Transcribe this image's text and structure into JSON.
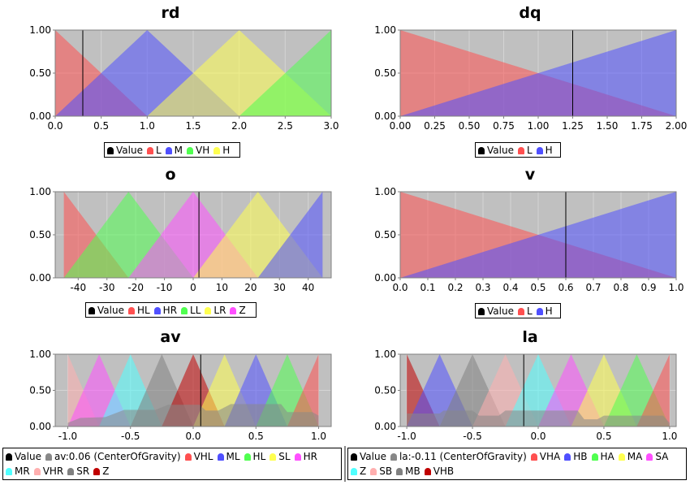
{
  "chart_data": [
    {
      "id": "rd",
      "type": "area",
      "title": "rd",
      "xlim": [
        0,
        3.0
      ],
      "ylim": [
        0,
        1
      ],
      "xticks": [
        "0.0",
        "0.5",
        "1.0",
        "1.5",
        "2.0",
        "2.5",
        "3.0"
      ],
      "xtickvals": [
        0,
        0.5,
        1,
        1.5,
        2,
        2.5,
        3
      ],
      "yticks": [
        "0.00",
        "0.50",
        "1.00"
      ],
      "value": 0.3,
      "legend": [
        {
          "name": "Value",
          "color": "#000000"
        },
        {
          "name": "L",
          "color": "#ff5050"
        },
        {
          "name": "M",
          "color": "#5050ff"
        },
        {
          "name": "VH",
          "color": "#50ff50"
        },
        {
          "name": "H",
          "color": "#ffff50"
        }
      ],
      "series": [
        {
          "name": "L",
          "color": "#ff5050",
          "points": [
            [
              0,
              1
            ],
            [
              1,
              0
            ]
          ]
        },
        {
          "name": "M",
          "color": "#5050ff",
          "points": [
            [
              0,
              0
            ],
            [
              1,
              1
            ],
            [
              2,
              0
            ]
          ]
        },
        {
          "name": "H",
          "color": "#ffff50",
          "points": [
            [
              1,
              0
            ],
            [
              2,
              1
            ],
            [
              3,
              0
            ]
          ]
        },
        {
          "name": "VH",
          "color": "#50ff50",
          "points": [
            [
              2,
              0
            ],
            [
              3,
              1
            ],
            [
              3,
              0
            ]
          ]
        }
      ]
    },
    {
      "id": "dq",
      "type": "area",
      "title": "dq",
      "xlim": [
        0,
        2.0
      ],
      "ylim": [
        0,
        1
      ],
      "xticks": [
        "0.00",
        "0.25",
        "0.50",
        "0.75",
        "1.00",
        "1.25",
        "1.50",
        "1.75",
        "2.00"
      ],
      "xtickvals": [
        0,
        0.25,
        0.5,
        0.75,
        1,
        1.25,
        1.5,
        1.75,
        2
      ],
      "yticks": [
        "0.00",
        "0.50",
        "1.00"
      ],
      "value": 1.25,
      "legend": [
        {
          "name": "Value",
          "color": "#000000"
        },
        {
          "name": "L",
          "color": "#ff5050"
        },
        {
          "name": "H",
          "color": "#5050ff"
        }
      ],
      "series": [
        {
          "name": "L",
          "color": "#ff5050",
          "points": [
            [
              0,
              1
            ],
            [
              2,
              0
            ]
          ]
        },
        {
          "name": "H",
          "color": "#5050ff",
          "points": [
            [
              0,
              0
            ],
            [
              2,
              1
            ],
            [
              2,
              0
            ]
          ]
        }
      ]
    },
    {
      "id": "o",
      "type": "area",
      "title": "o",
      "xlim": [
        -48,
        48
      ],
      "ylim": [
        0,
        1
      ],
      "xticks": [
        "-40",
        "-30",
        "-20",
        "-10",
        "0",
        "10",
        "20",
        "30",
        "40"
      ],
      "xtickvals": [
        -40,
        -30,
        -20,
        -10,
        0,
        10,
        20,
        30,
        40
      ],
      "yticks": [
        "0.00",
        "0.50",
        "1.00"
      ],
      "value": 2,
      "legend": [
        {
          "name": "Value",
          "color": "#000000"
        },
        {
          "name": "HL",
          "color": "#ff5050"
        },
        {
          "name": "HR",
          "color": "#5050ff"
        },
        {
          "name": "LL",
          "color": "#50ff50"
        },
        {
          "name": "LR",
          "color": "#ffff50"
        },
        {
          "name": "Z",
          "color": "#ff50ff"
        }
      ],
      "series": [
        {
          "name": "HL",
          "color": "#ff5050",
          "points": [
            [
              -45,
              0
            ],
            [
              -45,
              1
            ],
            [
              -22.5,
              0
            ]
          ]
        },
        {
          "name": "LL",
          "color": "#50ff50",
          "points": [
            [
              -45,
              0
            ],
            [
              -22.5,
              1
            ],
            [
              0,
              0
            ]
          ]
        },
        {
          "name": "Z",
          "color": "#ff50ff",
          "points": [
            [
              -22.5,
              0
            ],
            [
              0,
              1
            ],
            [
              22.5,
              0
            ]
          ]
        },
        {
          "name": "LR",
          "color": "#ffff50",
          "points": [
            [
              0,
              0
            ],
            [
              22.5,
              1
            ],
            [
              45,
              0
            ]
          ]
        },
        {
          "name": "HR",
          "color": "#5050ff",
          "points": [
            [
              22.5,
              0
            ],
            [
              45,
              1
            ],
            [
              45,
              0
            ]
          ]
        }
      ]
    },
    {
      "id": "v",
      "type": "area",
      "title": "v",
      "xlim": [
        0,
        1.0
      ],
      "ylim": [
        0,
        1
      ],
      "xticks": [
        "0.0",
        "0.1",
        "0.2",
        "0.3",
        "0.4",
        "0.5",
        "0.6",
        "0.7",
        "0.8",
        "0.9",
        "1.0"
      ],
      "xtickvals": [
        0,
        0.1,
        0.2,
        0.3,
        0.4,
        0.5,
        0.6,
        0.7,
        0.8,
        0.9,
        1
      ],
      "yticks": [
        "0.00",
        "0.50",
        "1.00"
      ],
      "value": 0.6,
      "legend": [
        {
          "name": "Value",
          "color": "#000000"
        },
        {
          "name": "L",
          "color": "#ff5050"
        },
        {
          "name": "H",
          "color": "#5050ff"
        }
      ],
      "series": [
        {
          "name": "L",
          "color": "#ff5050",
          "points": [
            [
              0,
              1
            ],
            [
              1,
              0
            ]
          ]
        },
        {
          "name": "H",
          "color": "#5050ff",
          "points": [
            [
              0,
              0
            ],
            [
              1,
              1
            ],
            [
              1,
              0
            ]
          ]
        }
      ]
    },
    {
      "id": "av",
      "type": "area",
      "title": "av",
      "xlim": [
        -1.1,
        1.1
      ],
      "ylim": [
        0,
        1
      ],
      "xticks": [
        "-1.0",
        "-0.5",
        "0.0",
        "0.5",
        "1.0"
      ],
      "xtickvals": [
        -1,
        -0.5,
        0,
        0.5,
        1
      ],
      "yticks": [
        "0.00",
        "0.50",
        "1.00"
      ],
      "value": 0.06,
      "legend": [
        {
          "name": "Value",
          "color": "#000000"
        },
        {
          "name": "av:0.06 (CenterOfGravity)",
          "color": "#888888"
        },
        {
          "name": "VHL",
          "color": "#ff5050"
        },
        {
          "name": "ML",
          "color": "#5050ff"
        },
        {
          "name": "HL",
          "color": "#50ff50"
        },
        {
          "name": "SL",
          "color": "#ffff50"
        },
        {
          "name": "HR",
          "color": "#ff50ff"
        },
        {
          "name": "MR",
          "color": "#50ffff"
        },
        {
          "name": "VHR",
          "color": "#ffafaf"
        },
        {
          "name": "SR",
          "color": "#808080"
        },
        {
          "name": "Z",
          "color": "#c00000"
        }
      ],
      "series": [
        {
          "name": "VHR",
          "color": "#ffafaf",
          "points": [
            [
              -1,
              0
            ],
            [
              -1,
              1
            ],
            [
              -0.75,
              0
            ]
          ]
        },
        {
          "name": "HR",
          "color": "#ff50ff",
          "points": [
            [
              -1,
              0
            ],
            [
              -0.75,
              1
            ],
            [
              -0.5,
              0
            ]
          ]
        },
        {
          "name": "MR",
          "color": "#50ffff",
          "points": [
            [
              -0.75,
              0
            ],
            [
              -0.5,
              1
            ],
            [
              -0.25,
              0
            ]
          ]
        },
        {
          "name": "SR",
          "color": "#808080",
          "points": [
            [
              -0.5,
              0
            ],
            [
              -0.25,
              1
            ],
            [
              0,
              0
            ]
          ]
        },
        {
          "name": "Z",
          "color": "#c00000",
          "points": [
            [
              -0.25,
              0
            ],
            [
              0,
              1
            ],
            [
              0.25,
              0
            ]
          ]
        },
        {
          "name": "SL",
          "color": "#ffff50",
          "points": [
            [
              0,
              0
            ],
            [
              0.25,
              1
            ],
            [
              0.5,
              0
            ]
          ]
        },
        {
          "name": "ML",
          "color": "#5050ff",
          "points": [
            [
              0.25,
              0
            ],
            [
              0.5,
              1
            ],
            [
              0.75,
              0
            ]
          ]
        },
        {
          "name": "HL",
          "color": "#50ff50",
          "points": [
            [
              0.5,
              0
            ],
            [
              0.75,
              1
            ],
            [
              1,
              0
            ]
          ]
        },
        {
          "name": "VHL",
          "color": "#ff5050",
          "points": [
            [
              0.75,
              0
            ],
            [
              1,
              1
            ],
            [
              1,
              0
            ]
          ]
        },
        {
          "name": "av:0.06 (CenterOfGravity)",
          "color": "#888888",
          "points": [
            [
              -1,
              0
            ],
            [
              -1,
              0.05
            ],
            [
              -0.9,
              0.12
            ],
            [
              -0.7,
              0.13
            ],
            [
              -0.55,
              0.23
            ],
            [
              -0.3,
              0.23
            ],
            [
              -0.2,
              0.3
            ],
            [
              0.05,
              0.3
            ],
            [
              0.1,
              0.22
            ],
            [
              0.2,
              0.22
            ],
            [
              0.3,
              0.31
            ],
            [
              0.7,
              0.31
            ],
            [
              0.75,
              0.2
            ],
            [
              0.95,
              0.2
            ],
            [
              1,
              0.15
            ],
            [
              1,
              0
            ]
          ]
        }
      ]
    },
    {
      "id": "la",
      "type": "area",
      "title": "la",
      "xlim": [
        -1.05,
        1.05
      ],
      "ylim": [
        0,
        1
      ],
      "xticks": [
        "-1.0",
        "-0.5",
        "0.0",
        "0.5",
        "1.0"
      ],
      "xtickvals": [
        -1,
        -0.5,
        0,
        0.5,
        1
      ],
      "yticks": [
        "0.00",
        "0.50",
        "1.00"
      ],
      "value": -0.11,
      "legend": [
        {
          "name": "Value",
          "color": "#000000"
        },
        {
          "name": "la:-0.11 (CenterOfGravity)",
          "color": "#888888"
        },
        {
          "name": "VHA",
          "color": "#ff5050"
        },
        {
          "name": "HB",
          "color": "#5050ff"
        },
        {
          "name": "HA",
          "color": "#50ff50"
        },
        {
          "name": "MA",
          "color": "#ffff50"
        },
        {
          "name": "SA",
          "color": "#ff50ff"
        },
        {
          "name": "Z",
          "color": "#50ffff"
        },
        {
          "name": "SB",
          "color": "#ffafaf"
        },
        {
          "name": "MB",
          "color": "#808080"
        },
        {
          "name": "VHB",
          "color": "#c00000"
        }
      ],
      "series": [
        {
          "name": "VHB",
          "color": "#c00000",
          "points": [
            [
              -1,
              0
            ],
            [
              -1,
              1
            ],
            [
              -0.75,
              0
            ]
          ]
        },
        {
          "name": "HB",
          "color": "#5050ff",
          "points": [
            [
              -1,
              0
            ],
            [
              -0.75,
              1
            ],
            [
              -0.5,
              0
            ]
          ]
        },
        {
          "name": "MB",
          "color": "#808080",
          "points": [
            [
              -0.75,
              0
            ],
            [
              -0.5,
              1
            ],
            [
              -0.25,
              0
            ]
          ]
        },
        {
          "name": "SB",
          "color": "#ffafaf",
          "points": [
            [
              -0.5,
              0
            ],
            [
              -0.25,
              1
            ],
            [
              0,
              0
            ]
          ]
        },
        {
          "name": "Z",
          "color": "#50ffff",
          "points": [
            [
              -0.25,
              0
            ],
            [
              0,
              1
            ],
            [
              0.25,
              0
            ]
          ]
        },
        {
          "name": "SA",
          "color": "#ff50ff",
          "points": [
            [
              0,
              0
            ],
            [
              0.25,
              1
            ],
            [
              0.5,
              0
            ]
          ]
        },
        {
          "name": "MA",
          "color": "#ffff50",
          "points": [
            [
              0.25,
              0
            ],
            [
              0.5,
              1
            ],
            [
              0.75,
              0
            ]
          ]
        },
        {
          "name": "HA",
          "color": "#50ff50",
          "points": [
            [
              0.5,
              0
            ],
            [
              0.75,
              1
            ],
            [
              1,
              0
            ]
          ]
        },
        {
          "name": "VHA",
          "color": "#ff5050",
          "points": [
            [
              0.75,
              0
            ],
            [
              1,
              1
            ],
            [
              1,
              0
            ]
          ]
        },
        {
          "name": "la:-0.11 (CenterOfGravity)",
          "color": "#888888",
          "points": [
            [
              -1,
              0
            ],
            [
              -1,
              0.18
            ],
            [
              -0.75,
              0.18
            ],
            [
              -0.72,
              0.22
            ],
            [
              -0.5,
              0.22
            ],
            [
              -0.45,
              0.15
            ],
            [
              -0.3,
              0.15
            ],
            [
              -0.25,
              0.22
            ],
            [
              0.3,
              0.22
            ],
            [
              0.35,
              0.1
            ],
            [
              0.45,
              0.1
            ],
            [
              0.5,
              0.15
            ],
            [
              0.95,
              0.15
            ],
            [
              1,
              0.05
            ],
            [
              1,
              0
            ]
          ]
        }
      ]
    }
  ]
}
